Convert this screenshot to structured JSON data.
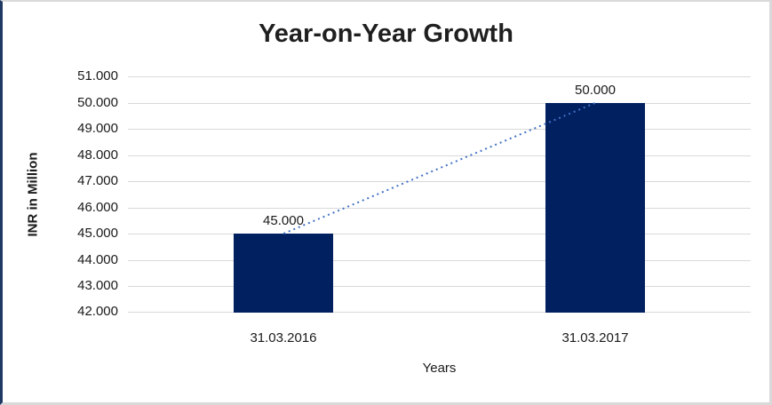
{
  "chart_data": {
    "type": "bar",
    "title": "Year-on-Year Growth",
    "xlabel": "Years",
    "ylabel": "INR in Million",
    "categories": [
      "31.03.2016",
      "31.03.2017"
    ],
    "series": [
      {
        "name": "INR in Million",
        "values": [
          45000,
          50000
        ]
      }
    ],
    "data_labels": [
      "45.000",
      "50.000"
    ],
    "y_tick_labels": [
      "51.000",
      "50.000",
      "49.000",
      "48.000",
      "47.000",
      "46.000",
      "45.000",
      "44.000",
      "43.000",
      "42.000"
    ],
    "ylim": [
      42000,
      51000
    ],
    "grid": true,
    "legend_position": "none",
    "bar_color": "#002060",
    "gridline_color": "#d9d9d9",
    "trendline": {
      "type": "linear",
      "style": "dotted",
      "color": "#4472c4"
    },
    "frame": {
      "accent_border_color": "#1f3864",
      "light_border_color": "#d9d9d9"
    }
  }
}
